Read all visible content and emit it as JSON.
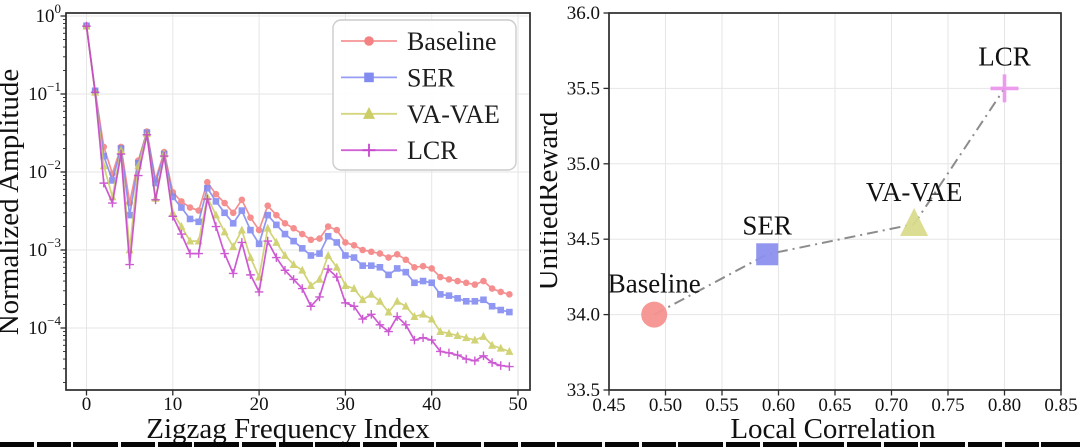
{
  "figure": {
    "background": "#ffffff",
    "caption_strip": "cropped-black-strip"
  },
  "chart_data": [
    {
      "id": "zigzag-frequency-spectrum",
      "type": "line",
      "title": "",
      "xlabel": "Zigzag Frequency Index",
      "ylabel": "Normalized Amplitude",
      "x_ticks": [
        0,
        10,
        20,
        30,
        40,
        50
      ],
      "y_scale": "log",
      "y_tick_exponents": [
        0,
        -1,
        -2,
        -3,
        -4
      ],
      "xlim": [
        -2.4,
        51.4
      ],
      "ylim": [
        1.65e-05,
        1.12
      ],
      "grid": true,
      "legend_position": "upper right",
      "x": [
        0,
        1,
        2,
        3,
        4,
        5,
        6,
        7,
        8,
        9,
        10,
        11,
        12,
        13,
        14,
        15,
        16,
        17,
        18,
        19,
        20,
        21,
        22,
        23,
        24,
        25,
        26,
        27,
        28,
        29,
        30,
        31,
        32,
        33,
        34,
        35,
        36,
        37,
        38,
        39,
        40,
        41,
        42,
        43,
        44,
        45,
        46,
        47,
        48,
        49
      ],
      "series": [
        {
          "name": "Baseline",
          "marker": "circle",
          "color": "#f47c7c",
          "values": [
            0.75,
            0.11,
            0.021,
            0.0095,
            0.021,
            0.004,
            0.014,
            0.033,
            0.008,
            0.018,
            0.0055,
            0.0042,
            0.0035,
            0.0032,
            0.0074,
            0.0052,
            0.004,
            0.003,
            0.0044,
            0.0026,
            0.0018,
            0.0037,
            0.0028,
            0.0022,
            0.0019,
            0.0016,
            0.00135,
            0.0014,
            0.002,
            0.0018,
            0.00125,
            0.00115,
            0.001,
            0.00095,
            0.0009,
            0.0008,
            0.00088,
            0.00075,
            0.0006,
            0.00062,
            0.00058,
            0.00045,
            0.00042,
            0.0004,
            0.00038,
            0.00036,
            0.0004,
            0.00032,
            0.00029,
            0.00027
          ]
        },
        {
          "name": "SER",
          "marker": "square",
          "color": "#7c86f0",
          "values": [
            0.75,
            0.11,
            0.016,
            0.0078,
            0.02,
            0.0028,
            0.013,
            0.032,
            0.0072,
            0.017,
            0.0048,
            0.0035,
            0.0025,
            0.0023,
            0.0062,
            0.0042,
            0.003,
            0.0022,
            0.0032,
            0.0018,
            0.0012,
            0.0028,
            0.0021,
            0.0016,
            0.0013,
            0.00105,
            0.00085,
            0.0009,
            0.0015,
            0.00125,
            0.00085,
            0.0008,
            0.00063,
            0.00063,
            0.0006,
            0.00048,
            0.00058,
            0.00052,
            0.00038,
            0.0004,
            0.00038,
            0.00027,
            0.00026,
            0.00024,
            0.00022,
            0.00022,
            0.00023,
            0.00019,
            0.00017,
            0.00016
          ]
        },
        {
          "name": "VA-VAE",
          "marker": "triangle",
          "color": "#c9cc5f",
          "values": [
            0.74,
            0.105,
            0.012,
            0.0048,
            0.019,
            0.001,
            0.012,
            0.031,
            0.0046,
            0.017,
            0.003,
            0.002,
            0.0013,
            0.0013,
            0.0048,
            0.0028,
            0.0017,
            0.0011,
            0.0018,
            0.0008,
            0.00045,
            0.0019,
            0.00125,
            0.00085,
            0.00065,
            0.00055,
            0.00035,
            0.00042,
            0.00085,
            0.0006,
            0.00035,
            0.00032,
            0.00023,
            0.00027,
            0.00022,
            0.00016,
            0.00022,
            0.00019,
            0.00014,
            0.00015,
            0.00013,
            9e-05,
            8.5e-05,
            8e-05,
            7.5e-05,
            7e-05,
            7.8e-05,
            6e-05,
            5.5e-05,
            5e-05
          ]
        },
        {
          "name": "LCR",
          "marker": "plus",
          "color": "#c53ecb",
          "values": [
            0.74,
            0.105,
            0.0072,
            0.004,
            0.017,
            0.00065,
            0.009,
            0.03,
            0.0044,
            0.016,
            0.0027,
            0.0016,
            0.0009,
            0.0009,
            0.0045,
            0.002,
            0.0009,
            0.0005,
            0.00125,
            0.00048,
            0.00029,
            0.0013,
            0.0008,
            0.00055,
            0.00042,
            0.00032,
            0.00019,
            0.00025,
            0.00057,
            0.00045,
            0.00021,
            0.00019,
            0.00013,
            0.00015,
            0.00011,
            9e-05,
            0.00014,
            0.00011,
            7e-05,
            7.5e-05,
            7e-05,
            5e-05,
            4.8e-05,
            4.5e-05,
            4e-05,
            3.8e-05,
            4.4e-05,
            3.6e-05,
            3.3e-05,
            3.2e-05
          ]
        }
      ]
    },
    {
      "id": "unifiedreward-vs-local-correlation",
      "type": "scatter",
      "title": "",
      "xlabel": "Local Correlation",
      "ylabel": "UnifiedReward",
      "xlim": [
        0.45,
        0.85
      ],
      "ylim": [
        33.5,
        36.0
      ],
      "x_ticks": [
        0.45,
        0.5,
        0.55,
        0.6,
        0.65,
        0.7,
        0.75,
        0.8,
        0.85
      ],
      "y_ticks": [
        33.5,
        34.0,
        34.5,
        35.0,
        35.5,
        36.0
      ],
      "grid": true,
      "connector": {
        "style": "dash-dot",
        "color": "#8c8c8c"
      },
      "points": [
        {
          "label": "Baseline",
          "x": 0.49,
          "y": 34.0,
          "marker": "circle",
          "color": "#f5928f"
        },
        {
          "label": "SER",
          "x": 0.59,
          "y": 34.4,
          "marker": "square",
          "color": "#8c90ee"
        },
        {
          "label": "VA-VAE",
          "x": 0.72,
          "y": 34.6,
          "marker": "triangle",
          "color": "#d9db8c"
        },
        {
          "label": "LCR",
          "x": 0.8,
          "y": 35.5,
          "marker": "plus",
          "color": "#ec96ec"
        }
      ]
    }
  ]
}
